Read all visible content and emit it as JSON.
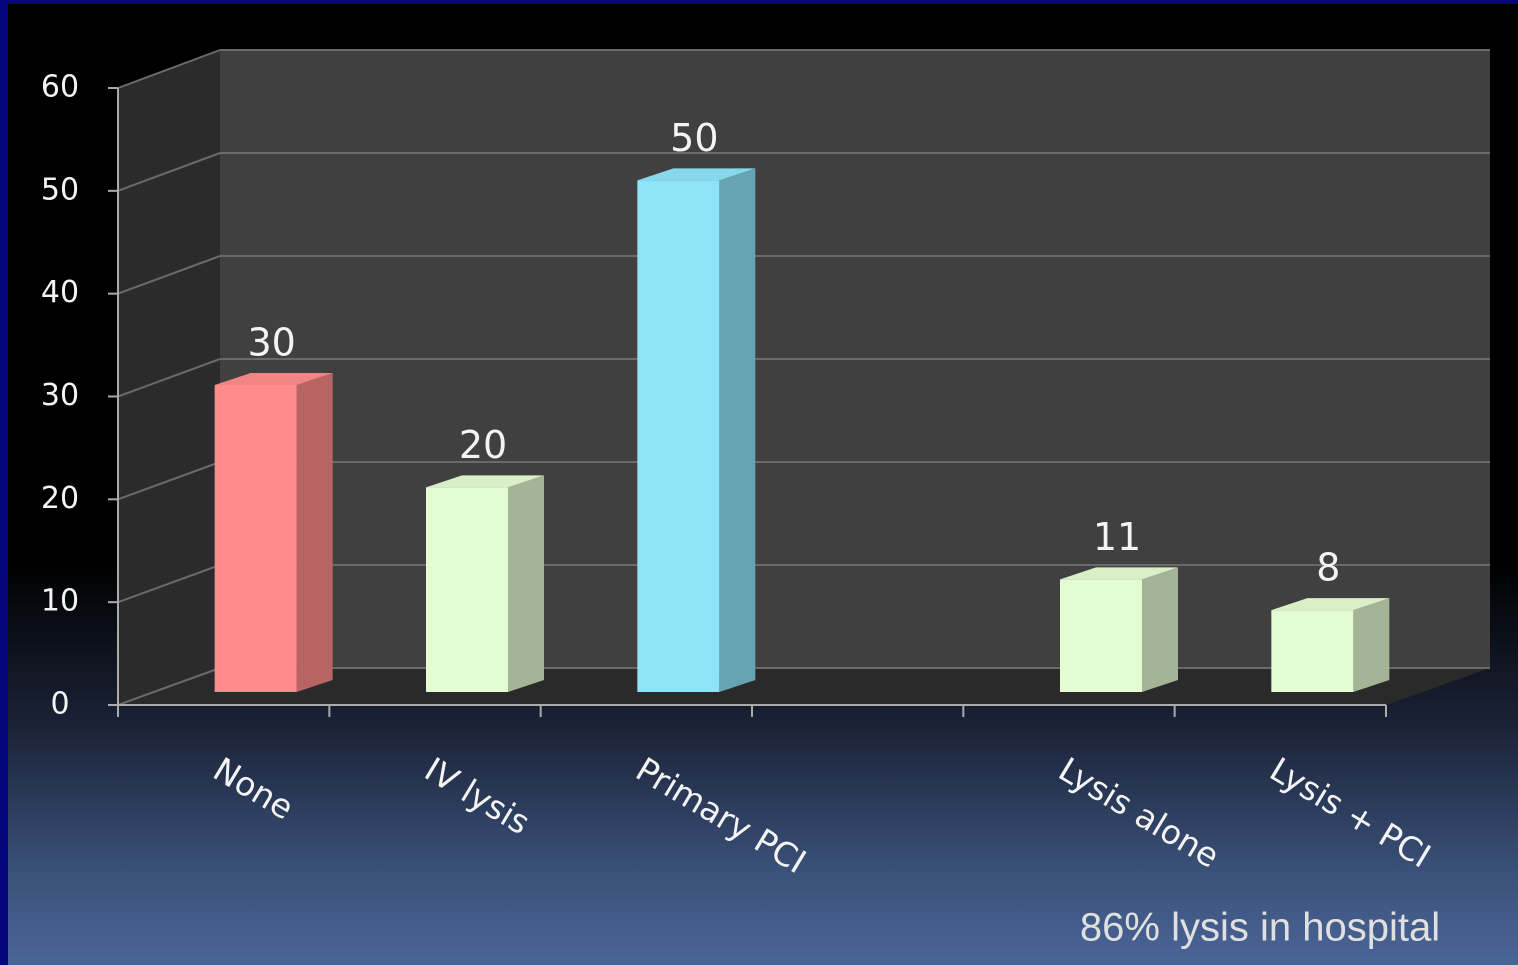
{
  "chart_data": {
    "type": "bar3d",
    "categories": [
      "None",
      "IV lysis",
      "Primary PCI",
      null,
      "Lysis alone",
      "Lysis + PCI"
    ],
    "values": [
      30,
      20,
      50,
      null,
      11,
      8
    ],
    "colors": [
      "#ff8b8b",
      "#e4fcd2",
      "#8ee3f8",
      null,
      "#e4fcd2",
      "#e4fcd2"
    ],
    "ylim": [
      0,
      60
    ],
    "yticks": [
      0,
      10,
      20,
      30,
      40,
      50,
      60
    ],
    "grid": true,
    "annotation": "86% lysis in hospital"
  }
}
